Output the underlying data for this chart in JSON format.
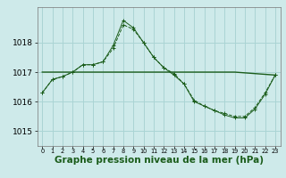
{
  "background_color": "#ceeaea",
  "grid_color": "#aad4d4",
  "line_color": "#1a5c1a",
  "xlabel": "Graphe pression niveau de la mer (hPa)",
  "ylim": [
    1014.5,
    1019.2
  ],
  "xlim": [
    -0.5,
    23.5
  ],
  "yticks": [
    1015,
    1016,
    1017,
    1018
  ],
  "xticks": [
    0,
    1,
    2,
    3,
    4,
    5,
    6,
    7,
    8,
    9,
    10,
    11,
    12,
    13,
    14,
    15,
    16,
    17,
    18,
    19,
    20,
    21,
    22,
    23
  ],
  "series1_x": [
    0,
    1,
    2,
    3,
    4,
    5,
    6,
    7,
    8,
    9,
    10,
    11,
    12,
    13,
    14,
    15,
    16,
    17,
    18,
    19,
    20,
    21,
    22,
    23
  ],
  "series1_y": [
    1016.3,
    1016.75,
    1016.85,
    1017.0,
    1017.25,
    1017.25,
    1017.35,
    1017.8,
    1018.6,
    1018.45,
    1018.0,
    1017.5,
    1017.15,
    1016.95,
    1016.6,
    1016.05,
    1015.85,
    1015.7,
    1015.6,
    1015.5,
    1015.5,
    1015.8,
    1016.3,
    1016.9
  ],
  "series2_x": [
    0,
    1,
    2,
    3,
    4,
    5,
    6,
    7,
    8,
    9,
    10,
    11,
    12,
    13,
    14,
    15,
    16,
    17,
    18,
    19,
    20,
    21,
    22,
    23
  ],
  "series2_y": [
    1016.3,
    1016.75,
    1016.85,
    1017.0,
    1017.25,
    1017.25,
    1017.35,
    1017.9,
    1018.75,
    1018.5,
    1018.0,
    1017.5,
    1017.15,
    1016.9,
    1016.6,
    1016.0,
    1015.85,
    1015.7,
    1015.55,
    1015.45,
    1015.45,
    1015.75,
    1016.25,
    1016.9
  ],
  "series3_x": [
    0,
    10,
    19,
    23
  ],
  "series3_y": [
    1017.0,
    1017.0,
    1017.0,
    1016.9
  ],
  "xlabel_fontsize": 7.5,
  "ytick_fontsize": 6.5,
  "xtick_fontsize": 4.8
}
